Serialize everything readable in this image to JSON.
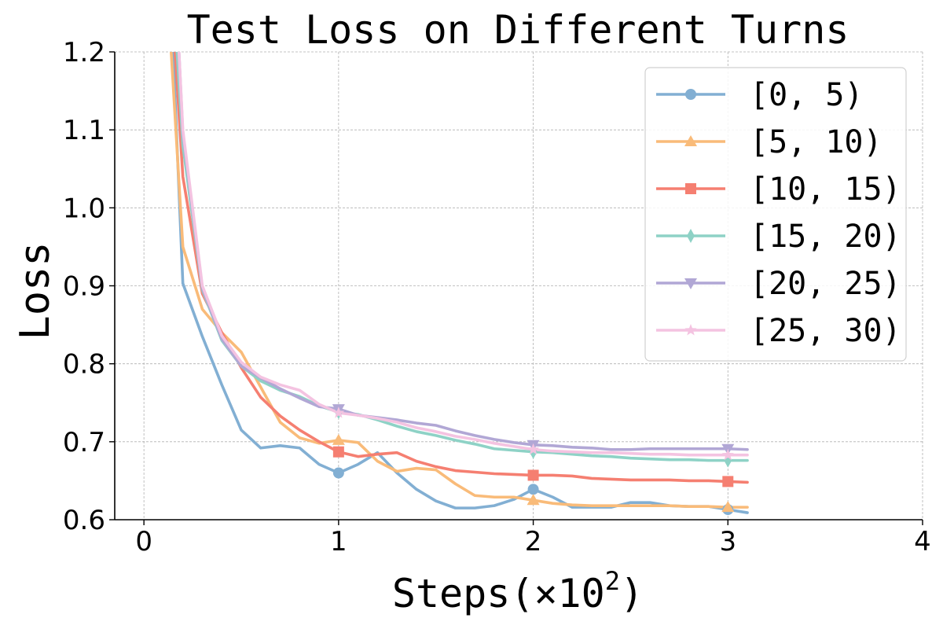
{
  "chart_data": {
    "type": "line",
    "title": "Test Loss on Different Turns",
    "xlabel_base": "Steps(×10",
    "xlabel_exp": "2",
    "xlabel_close": ")",
    "ylabel": "Loss",
    "xlim": [
      -0.15,
      4
    ],
    "ylim": [
      0.6,
      1.2
    ],
    "xticks": [
      0,
      1,
      2,
      3,
      4
    ],
    "xtick_labels": [
      "0",
      "1",
      "2",
      "3",
      "4"
    ],
    "yticks": [
      0.6,
      0.7,
      0.8,
      0.9,
      1.0,
      1.1,
      1.2
    ],
    "ytick_labels": [
      "0.6",
      "0.7",
      "0.8",
      "0.9",
      "1.0",
      "1.1",
      "1.2"
    ],
    "grid": true,
    "legend_position": "top-right",
    "x": [
      0.2,
      0.3,
      0.4,
      0.5,
      0.6,
      0.7,
      0.8,
      0.9,
      1.0,
      1.1,
      1.2,
      1.3,
      1.4,
      1.5,
      1.6,
      1.7,
      1.8,
      1.9,
      2.0,
      2.1,
      2.2,
      2.3,
      2.4,
      2.5,
      2.6,
      2.7,
      2.8,
      2.9,
      3.0,
      3.1
    ],
    "marker_x": [
      1,
      2,
      3
    ],
    "series": [
      {
        "name": "[0, 5)",
        "color": "#82afd3",
        "marker": "circle",
        "start": [
          0.15,
          1.2
        ],
        "values": [
          0.903,
          0.835,
          0.773,
          0.715,
          0.692,
          0.695,
          0.692,
          0.671,
          0.66,
          0.671,
          0.686,
          0.66,
          0.639,
          0.624,
          0.615,
          0.615,
          0.618,
          0.626,
          0.639,
          0.629,
          0.616,
          0.616,
          0.616,
          0.622,
          0.622,
          0.618,
          0.617,
          0.617,
          0.613,
          0.609
        ]
      },
      {
        "name": "[5, 10)",
        "color": "#f9bb79",
        "marker": "triangle-up",
        "start": [
          0.14,
          1.2
        ],
        "values": [
          0.95,
          0.87,
          0.84,
          0.815,
          0.77,
          0.725,
          0.705,
          0.698,
          0.702,
          0.699,
          0.675,
          0.662,
          0.666,
          0.664,
          0.646,
          0.631,
          0.629,
          0.629,
          0.625,
          0.621,
          0.619,
          0.618,
          0.618,
          0.618,
          0.618,
          0.618,
          0.617,
          0.617,
          0.616,
          0.616
        ]
      },
      {
        "name": "[10, 15)",
        "color": "#f57f71",
        "marker": "square",
        "start": [
          0.16,
          1.2
        ],
        "values": [
          1.04,
          0.89,
          0.84,
          0.795,
          0.757,
          0.733,
          0.715,
          0.7,
          0.687,
          0.681,
          0.684,
          0.686,
          0.675,
          0.668,
          0.663,
          0.661,
          0.659,
          0.658,
          0.657,
          0.657,
          0.656,
          0.653,
          0.652,
          0.651,
          0.651,
          0.651,
          0.65,
          0.65,
          0.649,
          0.648
        ]
      },
      {
        "name": "[15, 20)",
        "color": "#8ed2c6",
        "marker": "thin-diamond",
        "start": [
          0.17,
          1.2
        ],
        "values": [
          1.08,
          0.895,
          0.83,
          0.797,
          0.778,
          0.766,
          0.758,
          0.746,
          0.738,
          0.735,
          0.728,
          0.72,
          0.713,
          0.708,
          0.702,
          0.697,
          0.691,
          0.689,
          0.687,
          0.686,
          0.684,
          0.682,
          0.681,
          0.679,
          0.678,
          0.677,
          0.677,
          0.676,
          0.676,
          0.676
        ]
      },
      {
        "name": "[20, 25)",
        "color": "#b1a7d5",
        "marker": "triangle-down",
        "start": [
          0.18,
          1.2
        ],
        "values": [
          1.095,
          0.897,
          0.832,
          0.797,
          0.782,
          0.768,
          0.756,
          0.745,
          0.742,
          0.734,
          0.731,
          0.728,
          0.724,
          0.721,
          0.714,
          0.708,
          0.703,
          0.699,
          0.696,
          0.695,
          0.693,
          0.692,
          0.69,
          0.69,
          0.691,
          0.691,
          0.691,
          0.691,
          0.691,
          0.69
        ]
      },
      {
        "name": "[25, 30)",
        "color": "#f4c3e1",
        "marker": "star",
        "start": [
          0.18,
          1.2
        ],
        "values": [
          1.1,
          0.9,
          0.836,
          0.802,
          0.783,
          0.773,
          0.766,
          0.748,
          0.737,
          0.734,
          0.73,
          0.725,
          0.718,
          0.713,
          0.707,
          0.703,
          0.698,
          0.694,
          0.69,
          0.688,
          0.687,
          0.686,
          0.686,
          0.685,
          0.684,
          0.684,
          0.683,
          0.683,
          0.683,
          0.683
        ]
      }
    ]
  }
}
